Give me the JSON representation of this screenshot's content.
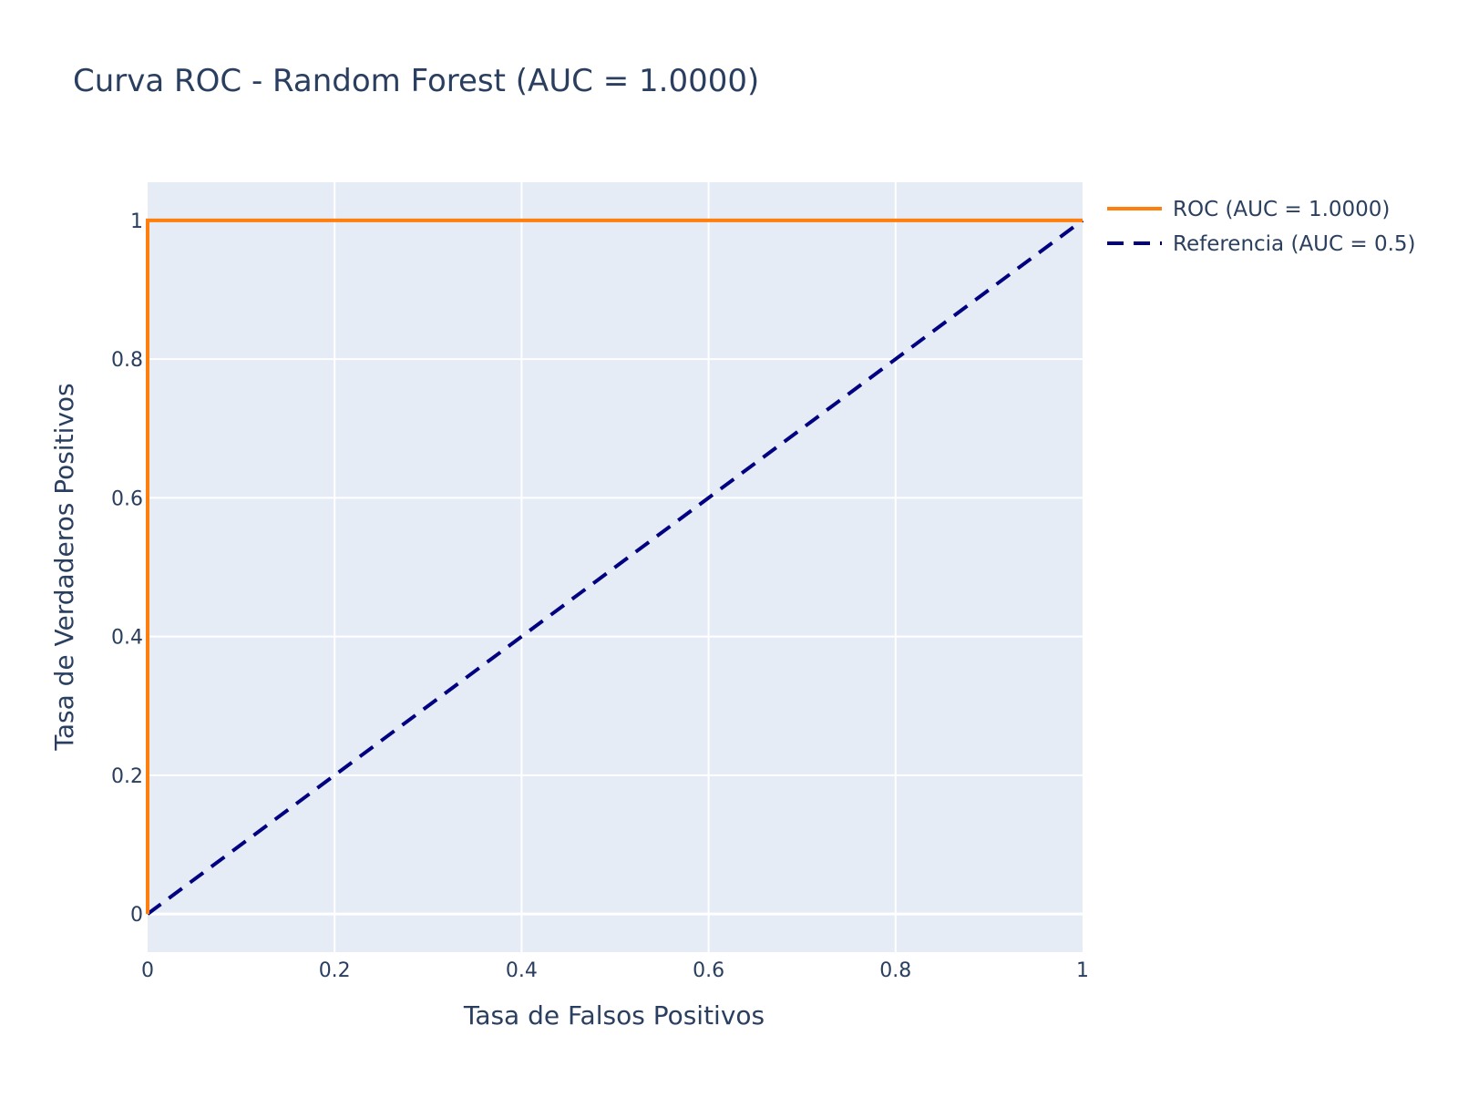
{
  "chart_data": {
    "type": "line",
    "title": "Curva ROC - Random Forest (AUC = 1.0000)",
    "xlabel": "Tasa de Falsos Positivos",
    "ylabel": "Tasa de Verdaderos Positivos",
    "xlim": [
      0,
      1
    ],
    "ylim": [
      -0.055,
      1.055
    ],
    "x_ticks": [
      0,
      0.2,
      0.4,
      0.6,
      0.8,
      1
    ],
    "x_tick_labels": [
      "0",
      "0.2",
      "0.4",
      "0.6",
      "0.8",
      "1"
    ],
    "y_ticks": [
      0,
      0.2,
      0.4,
      0.6,
      0.8,
      1
    ],
    "y_tick_labels": [
      "0",
      "0.2",
      "0.4",
      "0.6",
      "0.8",
      "1"
    ],
    "grid": true,
    "legend_position": "top-right, outside plot",
    "plot_background": "#e5ecf6",
    "series": [
      {
        "name": "ROC (AUC = 1.0000)",
        "x": [
          0,
          0,
          1
        ],
        "y": [
          0,
          1,
          1
        ],
        "color": "#ff7f0e",
        "dash": "solid"
      },
      {
        "name": "Referencia (AUC = 0.5)",
        "x": [
          0,
          1
        ],
        "y": [
          0,
          1
        ],
        "color": "#000080",
        "dash": "dashed"
      }
    ]
  }
}
